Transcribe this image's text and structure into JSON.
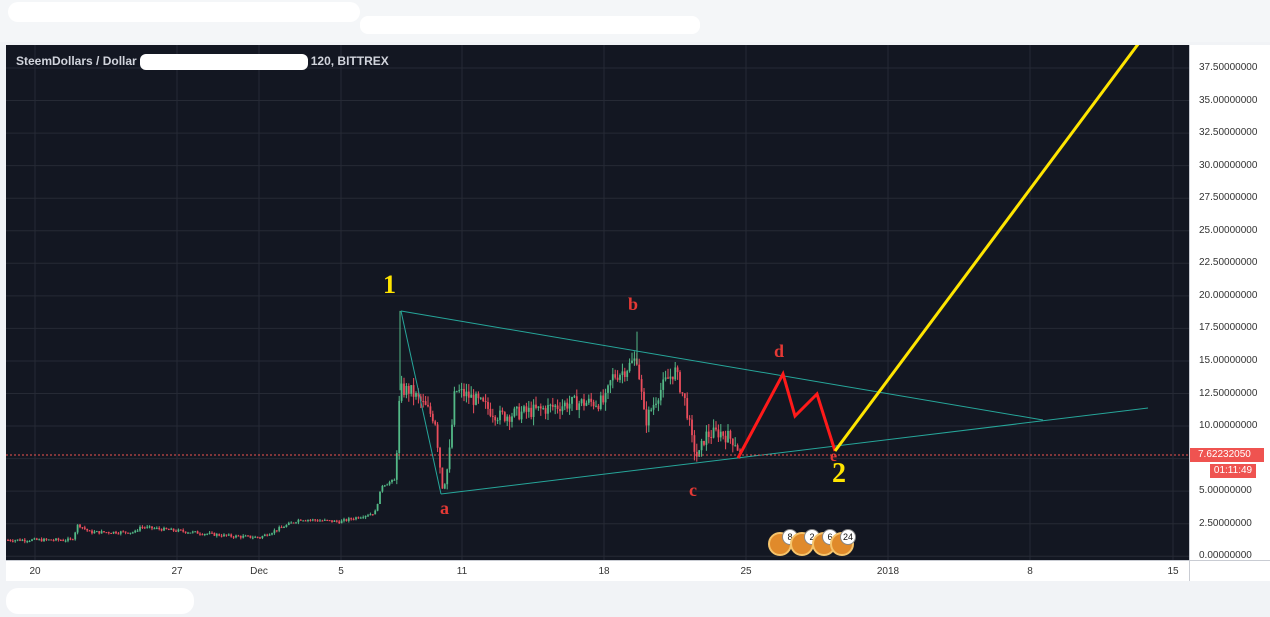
{
  "chart": {
    "symbol_left": "SteemDollars / Dollar",
    "symbol_right": "120, BITTREX",
    "current_price": "7.62232050",
    "countdown": "01:11:49"
  },
  "price_axis": [
    "37.50000000",
    "35.00000000",
    "32.50000000",
    "30.00000000",
    "27.50000000",
    "25.00000000",
    "22.50000000",
    "20.00000000",
    "17.50000000",
    "15.00000000",
    "12.50000000",
    "10.00000000",
    "7.50000000",
    "5.00000000",
    "2.50000000",
    "0.00000000"
  ],
  "time_axis": [
    "20",
    "27",
    "Dec",
    "5",
    "11",
    "18",
    "25",
    "2018",
    "8",
    "15"
  ],
  "wave_labels": {
    "one": "1",
    "two": "2",
    "a": "a",
    "b": "b",
    "c": "c",
    "d": "d",
    "e": "e"
  },
  "events": [
    "8",
    "2",
    "6",
    "24"
  ],
  "colors": {
    "background": "#131722",
    "up": "#53b987",
    "down": "#eb4d5c",
    "trendline": "#26a69a",
    "projection_red": "#ff1a1a",
    "projection_yellow": "#ffe500",
    "price_line": "#ef5350",
    "label_yellow": "#ffe500",
    "label_red": "#e53935"
  }
}
